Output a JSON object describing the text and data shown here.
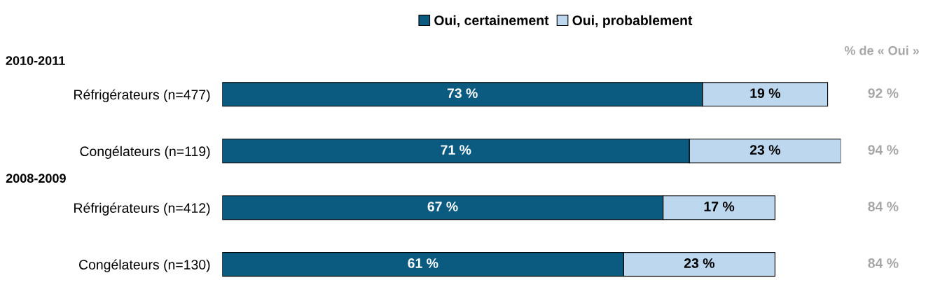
{
  "chart_data": {
    "type": "bar",
    "orientation": "horizontal",
    "stacked": true,
    "categories": [
      "Réfrigérateurs (n=477)",
      "Congélateurs (n=119)",
      "Réfrigérateurs (n=412)",
      "Congélateurs (n=130)"
    ],
    "series": [
      {
        "name": "Oui, certainement",
        "color": "#0b5a80",
        "values": [
          73,
          71,
          67,
          61
        ],
        "value_labels": [
          "73 %",
          "71 %",
          "67 %",
          "61 %"
        ]
      },
      {
        "name": "Oui, probablement",
        "color": "#bdd7ee",
        "values": [
          19,
          23,
          17,
          23
        ],
        "value_labels": [
          "19 %",
          "23 %",
          "17 %",
          "23 %"
        ]
      }
    ],
    "annotations": [
      "2010-2011",
      "2008-2009",
      "% de « Oui »",
      "92 %",
      "94 %",
      "84 %",
      "84 %"
    ],
    "legend": "top",
    "grid": false
  }
}
